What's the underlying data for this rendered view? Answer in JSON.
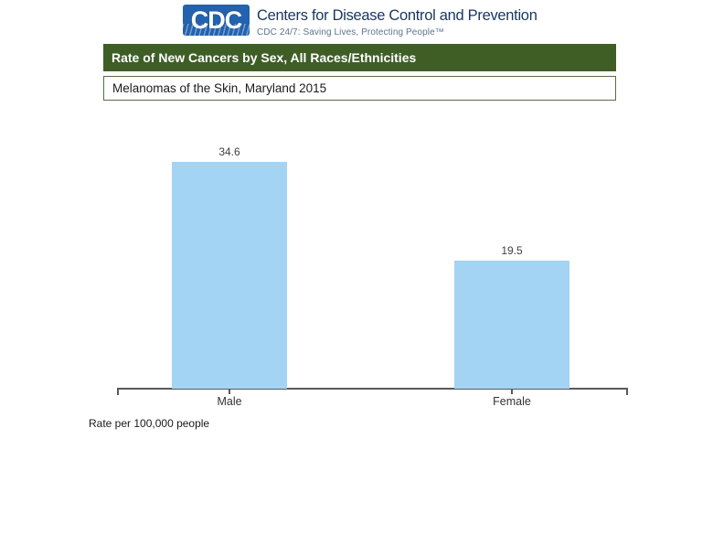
{
  "header": {
    "logo_text": "CDC",
    "org_name": "Centers for Disease Control and Prevention",
    "tagline": "CDC 24/7: Saving Lives, Protecting People™"
  },
  "chart": {
    "title": "Rate of New Cancers by Sex, All Races/Ethnicities",
    "subtitle": "Melanomas of the Skin, Maryland 2015",
    "footnote": "Rate per 100,000 people"
  },
  "chart_data": {
    "type": "bar",
    "categories": [
      "Male",
      "Female"
    ],
    "values": [
      34.6,
      19.5
    ],
    "value_labels": [
      "34.6",
      "19.5"
    ],
    "title": "Rate of New Cancers by Sex, All Races/Ethnicities",
    "subtitle": "Melanomas of the Skin, Maryland 2015",
    "xlabel": "",
    "ylabel": "Rate per 100,000 people",
    "ylim": [
      0,
      38.5
    ],
    "grid": false,
    "legend": false,
    "bar_color": "#a3d4f4"
  },
  "colors": {
    "title_bar_bg": "#3e5e26",
    "subtitle_border": "#5a6b4a",
    "bar_fill": "#a3d4f4",
    "axis": "#58595b",
    "logo_blue": "#2262ae",
    "org_name_text": "#17375e",
    "tagline_text": "#5d7591"
  }
}
